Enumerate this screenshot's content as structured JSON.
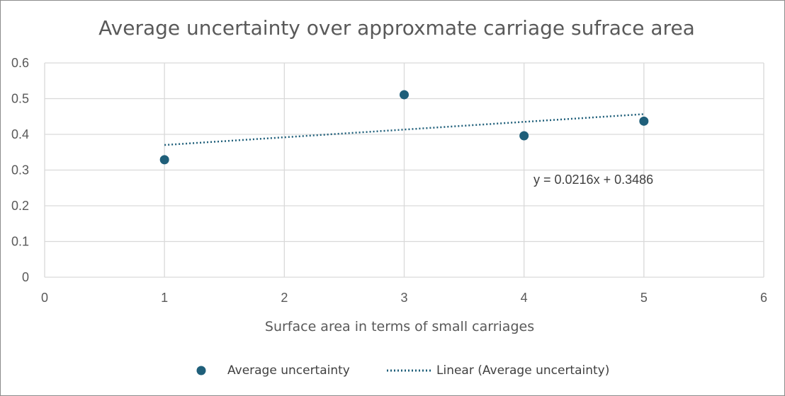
{
  "chart_data": {
    "type": "scatter",
    "title": "Average uncertainty over approxmate carriage sufrace area",
    "xlabel": "Surface area in terms of small carriages",
    "ylabel": "",
    "xlim": [
      0,
      6
    ],
    "ylim": [
      0,
      0.6
    ],
    "x_ticks": [
      "0",
      "1",
      "2",
      "3",
      "4",
      "5",
      "6"
    ],
    "y_ticks": [
      "0",
      "0.1",
      "0.2",
      "0.3",
      "0.4",
      "0.5",
      "0.6"
    ],
    "grid": true,
    "legend_position": "bottom",
    "series": [
      {
        "name": "Average uncertainty",
        "color": "#1f5f7a",
        "x": [
          1,
          3,
          4,
          5
        ],
        "y": [
          0.329,
          0.511,
          0.396,
          0.437
        ]
      }
    ],
    "trendline": {
      "name": "Linear (Average uncertainty)",
      "type": "linear",
      "style": "dotted",
      "color": "#1f5f7a",
      "slope": 0.0216,
      "intercept": 0.3486,
      "x_range": [
        1,
        5
      ],
      "equation": "y = 0.0216x + 0.3486"
    }
  }
}
